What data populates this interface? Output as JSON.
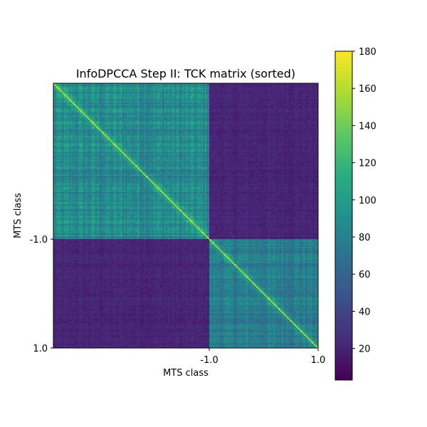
{
  "chart_data": {
    "type": "heatmap",
    "title": "InfoDPCCA Step II: TCK matrix (sorted)",
    "xlabel": "MTS class",
    "ylabel": "MTS class",
    "x_tick_labels": [
      "-1.0",
      "1.0"
    ],
    "y_tick_labels": [
      "-1.0",
      "1.0"
    ],
    "n_samples": 180,
    "class_boundary_index": 106,
    "block_mean_values": {
      "class_a_within": 95,
      "class_b_within": 85,
      "between_classes": 22
    },
    "diagonal_value": 160,
    "colormap": "viridis",
    "colorbar": {
      "min": 3,
      "max": 180,
      "ticks": [
        20,
        40,
        60,
        80,
        100,
        120,
        140,
        160,
        180
      ]
    }
  }
}
